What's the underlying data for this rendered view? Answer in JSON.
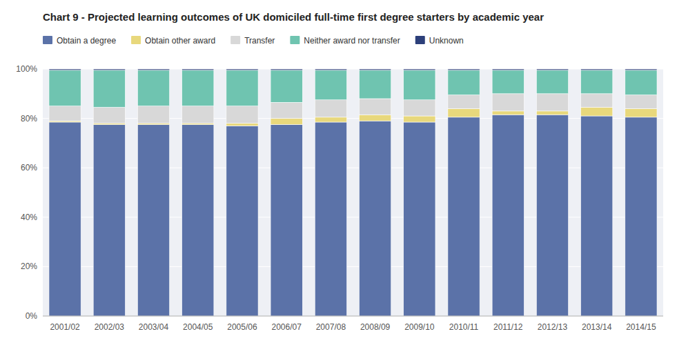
{
  "chart_data": {
    "type": "bar",
    "stacked": true,
    "title": "Chart 9 - Projected learning outcomes of UK domiciled full-time first degree starters by academic year",
    "categories": [
      "2001/02",
      "2002/03",
      "2003/04",
      "2004/05",
      "2005/06",
      "2006/07",
      "2007/08",
      "2008/09",
      "2009/10",
      "2010/11",
      "2011/12",
      "2012/13",
      "2013/14",
      "2014/15"
    ],
    "series": [
      {
        "name": "Obtain a degree",
        "color": "#5B72A8",
        "values": [
          78.5,
          77.5,
          77.5,
          77.5,
          77.0,
          77.5,
          78.5,
          79.0,
          78.5,
          80.5,
          81.5,
          81.5,
          81.0,
          80.5
        ]
      },
      {
        "name": "Obtain other award",
        "color": "#E8D87C",
        "values": [
          0.5,
          0.5,
          0.5,
          0.5,
          1.0,
          2.5,
          2.0,
          2.5,
          2.5,
          3.5,
          1.5,
          1.5,
          3.5,
          3.5
        ]
      },
      {
        "name": "Transfer",
        "color": "#D8D8D8",
        "values": [
          6.0,
          6.5,
          7.0,
          7.0,
          7.0,
          6.5,
          7.0,
          6.5,
          6.5,
          5.5,
          7.0,
          7.0,
          5.5,
          5.5
        ]
      },
      {
        "name": "Neither award nor transfer",
        "color": "#6FC4B0",
        "values": [
          14.5,
          15.0,
          14.5,
          14.5,
          14.5,
          13.0,
          12.0,
          11.5,
          12.0,
          10.0,
          9.5,
          9.5,
          9.5,
          10.0
        ]
      },
      {
        "name": "Unknown",
        "color": "#2C3F7A",
        "values": [
          0.5,
          0.5,
          0.5,
          0.5,
          0.5,
          0.5,
          0.5,
          0.5,
          0.5,
          0.5,
          0.5,
          0.5,
          0.5,
          0.5
        ]
      }
    ],
    "ylim": [
      0,
      100
    ],
    "yticks": [
      {
        "value": 0,
        "label": "0%"
      },
      {
        "value": 20,
        "label": "20%"
      },
      {
        "value": 40,
        "label": "40%"
      },
      {
        "value": 60,
        "label": "60%"
      },
      {
        "value": 80,
        "label": "80%"
      },
      {
        "value": 100,
        "label": "100%"
      }
    ],
    "grid": true,
    "legend": "upper left"
  }
}
